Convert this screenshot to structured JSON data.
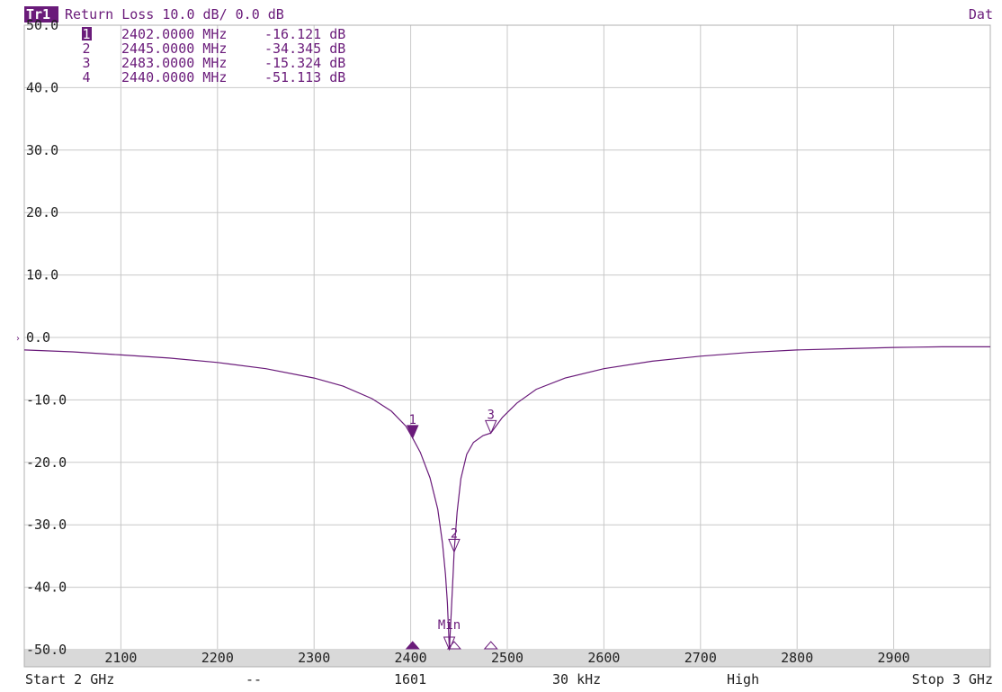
{
  "header": {
    "trace_badge": "Tr1",
    "trace_label": "Return Loss 10.0 dB/ 0.0 dB",
    "right_label": "Dat"
  },
  "marker_table": [
    {
      "id": "1",
      "freq": "2402.0000 MHz",
      "value": "-16.121 dB",
      "active": true
    },
    {
      "id": "2",
      "freq": "2445.0000 MHz",
      "value": "-34.345 dB",
      "active": false
    },
    {
      "id": "3",
      "freq": "2483.0000 MHz",
      "value": "-15.324 dB",
      "active": false
    },
    {
      "id": "4",
      "freq": "2440.0000 MHz",
      "value": "-51.113 dB",
      "active": false
    }
  ],
  "min_label": "Min",
  "status_bar": {
    "start": "Start 2 GHz",
    "dashes": "--",
    "points": "1601",
    "ifbw": "30 kHz",
    "power": "High",
    "stop": "Stop 3 GHz"
  },
  "colors": {
    "trace": "#6a1b7a",
    "grid": "#c8c8c8",
    "axis_strip": "#d9d9d9"
  },
  "chart_data": {
    "type": "line",
    "title": "Return Loss 10.0 dB/ 0.0 dB",
    "xlabel": "",
    "ylabel": "",
    "xlim": [
      2000,
      3000
    ],
    "ylim": [
      -50,
      50
    ],
    "x_ticks": [
      "2100",
      "2200",
      "2300",
      "2400",
      "2500",
      "2600",
      "2700",
      "2800",
      "2900"
    ],
    "y_ticks": [
      "50.0",
      "40.0",
      "30.0",
      "20.0",
      "10.0",
      "0.0",
      "-10.0",
      "-20.0",
      "-30.0",
      "-40.0",
      "-50.0"
    ],
    "grid": true,
    "series": [
      {
        "x": [
          2000,
          2050,
          2100,
          2150,
          2200,
          2250,
          2300,
          2330,
          2360,
          2380,
          2395,
          2402,
          2410,
          2420,
          2428,
          2433,
          2436,
          2438,
          2440,
          2442,
          2444,
          2445,
          2448,
          2452,
          2458,
          2465,
          2475,
          2483,
          2495,
          2510,
          2530,
          2560,
          2600,
          2650,
          2700,
          2750,
          2800,
          2850,
          2900,
          2950,
          3000
        ],
        "y": [
          -2.0,
          -2.3,
          -2.8,
          -3.3,
          -4.0,
          -5.0,
          -6.5,
          -7.8,
          -9.8,
          -11.8,
          -14.2,
          -16.1,
          -18.4,
          -22.5,
          -27.5,
          -33.0,
          -38.0,
          -42.5,
          -51.1,
          -44.0,
          -37.5,
          -34.3,
          -28.0,
          -22.6,
          -18.7,
          -16.8,
          -15.7,
          -15.3,
          -12.8,
          -10.5,
          -8.3,
          -6.5,
          -5.0,
          -3.8,
          -3.0,
          -2.4,
          -2.0,
          -1.8,
          -1.6,
          -1.5,
          -1.5
        ]
      }
    ],
    "markers": [
      {
        "id": "1",
        "x": 2402,
        "y": -16.121,
        "active": true
      },
      {
        "id": "2",
        "x": 2445,
        "y": -34.345,
        "active": false
      },
      {
        "id": "3",
        "x": 2483,
        "y": -15.324,
        "active": false
      },
      {
        "id": "4",
        "x": 2440,
        "y": -51.113,
        "active": false
      }
    ]
  }
}
